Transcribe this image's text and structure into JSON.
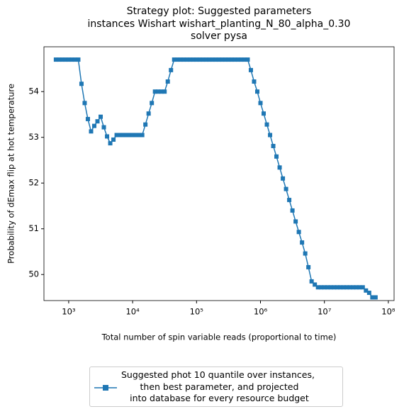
{
  "chart_data": {
    "type": "line",
    "title": "Strategy plot: Suggested parameters\ninstances Wishart wishart_planting_N_80_alpha_0.30\nsolver pysa",
    "xlabel": "Total number of spin variable reads (proportional to time)",
    "ylabel": "Probability of dEmax flip at hot temperature",
    "xscale": "log",
    "xlim": [
      410,
      123000000
    ],
    "ylim": [
      49.43,
      54.98
    ],
    "xticks": [
      {
        "value": 1000,
        "label": "10³"
      },
      {
        "value": 10000,
        "label": "10⁴"
      },
      {
        "value": 100000,
        "label": "10⁵"
      },
      {
        "value": 1000000,
        "label": "10⁶"
      },
      {
        "value": 10000000,
        "label": "10⁷"
      },
      {
        "value": 100000000,
        "label": "10⁸"
      }
    ],
    "yticks": [
      50,
      51,
      52,
      53,
      54
    ],
    "x": [
      631,
      708,
      794,
      891,
      1000,
      1122,
      1259,
      1413,
      1585,
      1778,
      1995,
      2239,
      2512,
      2818,
      3162,
      3548,
      3981,
      4467,
      5012,
      5623,
      6310,
      7079,
      7943,
      8913,
      10000,
      11220,
      12590,
      14130,
      15850,
      17780,
      19950,
      22390,
      25120,
      28180,
      31620,
      35480,
      39810,
      44670,
      50120,
      56230,
      63100,
      70790,
      79430,
      89130,
      100000,
      112200,
      125900,
      141300,
      158500,
      177800,
      199500,
      223900,
      251200,
      281800,
      316200,
      354800,
      398100,
      446700,
      501200,
      562300,
      631000,
      707900,
      794300,
      891300,
      1000000,
      1122000,
      1259000,
      1413000,
      1585000,
      1778000,
      1995000,
      2239000,
      2512000,
      2818000,
      3162000,
      3548000,
      3981000,
      4467000,
      5012000,
      5623000,
      6310000,
      7079000,
      7943000,
      8913000,
      10000000,
      11220000,
      12590000,
      14130000,
      15850000,
      17780000,
      19950000,
      22390000,
      25120000,
      28180000,
      31620000,
      35480000,
      39810000,
      44670000,
      50120000,
      56230000,
      63100000
    ],
    "series": [
      {
        "name": "Suggested phot 10 quantile over instances,\n then best parameter, and projected\n into database for every resource budget",
        "color": "#1f77b4",
        "marker": "square",
        "values": [
          54.7,
          54.7,
          54.7,
          54.7,
          54.7,
          54.7,
          54.7,
          54.7,
          54.17,
          53.75,
          53.4,
          53.13,
          53.25,
          53.35,
          53.45,
          53.22,
          53.02,
          52.87,
          52.95,
          53.05,
          53.05,
          53.05,
          53.05,
          53.05,
          53.05,
          53.05,
          53.05,
          53.05,
          53.28,
          53.52,
          53.75,
          54.0,
          54.0,
          54.0,
          54.0,
          54.22,
          54.47,
          54.7,
          54.7,
          54.7,
          54.7,
          54.7,
          54.7,
          54.7,
          54.7,
          54.7,
          54.7,
          54.7,
          54.7,
          54.7,
          54.7,
          54.7,
          54.7,
          54.7,
          54.7,
          54.7,
          54.7,
          54.7,
          54.7,
          54.7,
          54.7,
          54.47,
          54.22,
          54.0,
          53.75,
          53.52,
          53.28,
          53.05,
          52.81,
          52.58,
          52.34,
          52.1,
          51.87,
          51.63,
          51.4,
          51.16,
          50.93,
          50.7,
          50.46,
          50.16,
          49.85,
          49.78,
          49.72,
          49.72,
          49.72,
          49.72,
          49.72,
          49.72,
          49.72,
          49.72,
          49.72,
          49.72,
          49.72,
          49.72,
          49.72,
          49.72,
          49.72,
          49.65,
          49.6,
          49.5,
          49.5
        ]
      }
    ],
    "legend": "lower center"
  }
}
